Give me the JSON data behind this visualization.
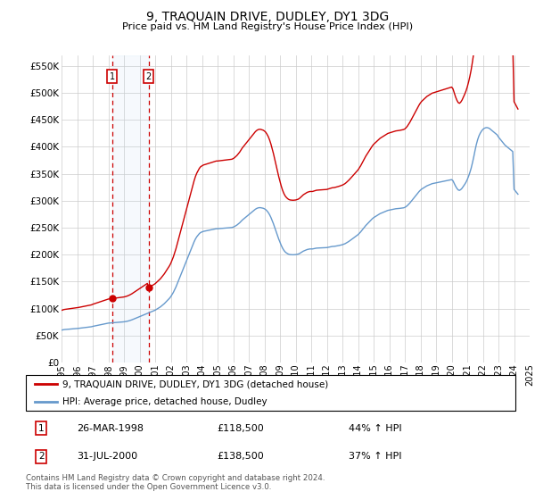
{
  "title": "9, TRAQUAIN DRIVE, DUDLEY, DY1 3DG",
  "subtitle": "Price paid vs. HM Land Registry's House Price Index (HPI)",
  "ylim": [
    0,
    570000
  ],
  "yticks": [
    0,
    50000,
    100000,
    150000,
    200000,
    250000,
    300000,
    350000,
    400000,
    450000,
    500000,
    550000
  ],
  "background_color": "#ffffff",
  "grid_color": "#cccccc",
  "hpi_color": "#6699cc",
  "price_color": "#cc0000",
  "sale1_date_num": 1998.23,
  "sale1_price": 118500,
  "sale1_label": "26-MAR-1998",
  "sale1_pct": "44% ↑ HPI",
  "sale2_date_num": 2000.58,
  "sale2_price": 138500,
  "sale2_label": "31-JUL-2000",
  "sale2_pct": "37% ↑ HPI",
  "legend_property": "9, TRAQUAIN DRIVE, DUDLEY, DY1 3DG (detached house)",
  "legend_hpi": "HPI: Average price, detached house, Dudley",
  "footnote": "Contains HM Land Registry data © Crown copyright and database right 2024.\nThis data is licensed under the Open Government Licence v3.0.",
  "hpi_dates": [
    1995.0,
    1995.083,
    1995.167,
    1995.25,
    1995.333,
    1995.417,
    1995.5,
    1995.583,
    1995.667,
    1995.75,
    1995.833,
    1995.917,
    1996.0,
    1996.083,
    1996.167,
    1996.25,
    1996.333,
    1996.417,
    1996.5,
    1996.583,
    1996.667,
    1996.75,
    1996.833,
    1996.917,
    1997.0,
    1997.083,
    1997.167,
    1997.25,
    1997.333,
    1997.417,
    1997.5,
    1997.583,
    1997.667,
    1997.75,
    1997.833,
    1997.917,
    1998.0,
    1998.083,
    1998.167,
    1998.25,
    1998.333,
    1998.417,
    1998.5,
    1998.583,
    1998.667,
    1998.75,
    1998.833,
    1998.917,
    1999.0,
    1999.083,
    1999.167,
    1999.25,
    1999.333,
    1999.417,
    1999.5,
    1999.583,
    1999.667,
    1999.75,
    1999.833,
    1999.917,
    2000.0,
    2000.083,
    2000.167,
    2000.25,
    2000.333,
    2000.417,
    2000.5,
    2000.583,
    2000.667,
    2000.75,
    2000.833,
    2000.917,
    2001.0,
    2001.083,
    2001.167,
    2001.25,
    2001.333,
    2001.417,
    2001.5,
    2001.583,
    2001.667,
    2001.75,
    2001.833,
    2001.917,
    2002.0,
    2002.083,
    2002.167,
    2002.25,
    2002.333,
    2002.417,
    2002.5,
    2002.583,
    2002.667,
    2002.75,
    2002.833,
    2002.917,
    2003.0,
    2003.083,
    2003.167,
    2003.25,
    2003.333,
    2003.417,
    2003.5,
    2003.583,
    2003.667,
    2003.75,
    2003.833,
    2003.917,
    2004.0,
    2004.083,
    2004.167,
    2004.25,
    2004.333,
    2004.417,
    2004.5,
    2004.583,
    2004.667,
    2004.75,
    2004.833,
    2004.917,
    2005.0,
    2005.083,
    2005.167,
    2005.25,
    2005.333,
    2005.417,
    2005.5,
    2005.583,
    2005.667,
    2005.75,
    2005.833,
    2005.917,
    2006.0,
    2006.083,
    2006.167,
    2006.25,
    2006.333,
    2006.417,
    2006.5,
    2006.583,
    2006.667,
    2006.75,
    2006.833,
    2006.917,
    2007.0,
    2007.083,
    2007.167,
    2007.25,
    2007.333,
    2007.417,
    2007.5,
    2007.583,
    2007.667,
    2007.75,
    2007.833,
    2007.917,
    2008.0,
    2008.083,
    2008.167,
    2008.25,
    2008.333,
    2008.417,
    2008.5,
    2008.583,
    2008.667,
    2008.75,
    2008.833,
    2008.917,
    2009.0,
    2009.083,
    2009.167,
    2009.25,
    2009.333,
    2009.417,
    2009.5,
    2009.583,
    2009.667,
    2009.75,
    2009.833,
    2009.917,
    2010.0,
    2010.083,
    2010.167,
    2010.25,
    2010.333,
    2010.417,
    2010.5,
    2010.583,
    2010.667,
    2010.75,
    2010.833,
    2010.917,
    2011.0,
    2011.083,
    2011.167,
    2011.25,
    2011.333,
    2011.417,
    2011.5,
    2011.583,
    2011.667,
    2011.75,
    2011.833,
    2011.917,
    2012.0,
    2012.083,
    2012.167,
    2012.25,
    2012.333,
    2012.417,
    2012.5,
    2012.583,
    2012.667,
    2012.75,
    2012.833,
    2012.917,
    2013.0,
    2013.083,
    2013.167,
    2013.25,
    2013.333,
    2013.417,
    2013.5,
    2013.583,
    2013.667,
    2013.75,
    2013.833,
    2013.917,
    2014.0,
    2014.083,
    2014.167,
    2014.25,
    2014.333,
    2014.417,
    2014.5,
    2014.583,
    2014.667,
    2014.75,
    2014.833,
    2014.917,
    2015.0,
    2015.083,
    2015.167,
    2015.25,
    2015.333,
    2015.417,
    2015.5,
    2015.583,
    2015.667,
    2015.75,
    2015.833,
    2015.917,
    2016.0,
    2016.083,
    2016.167,
    2016.25,
    2016.333,
    2016.417,
    2016.5,
    2016.583,
    2016.667,
    2016.75,
    2016.833,
    2016.917,
    2017.0,
    2017.083,
    2017.167,
    2017.25,
    2017.333,
    2017.417,
    2017.5,
    2017.583,
    2017.667,
    2017.75,
    2017.833,
    2017.917,
    2018.0,
    2018.083,
    2018.167,
    2018.25,
    2018.333,
    2018.417,
    2018.5,
    2018.583,
    2018.667,
    2018.75,
    2018.833,
    2018.917,
    2019.0,
    2019.083,
    2019.167,
    2019.25,
    2019.333,
    2019.417,
    2019.5,
    2019.583,
    2019.667,
    2019.75,
    2019.833,
    2019.917,
    2020.0,
    2020.083,
    2020.167,
    2020.25,
    2020.333,
    2020.417,
    2020.5,
    2020.583,
    2020.667,
    2020.75,
    2020.833,
    2020.917,
    2021.0,
    2021.083,
    2021.167,
    2021.25,
    2021.333,
    2021.417,
    2021.5,
    2021.583,
    2021.667,
    2021.75,
    2021.833,
    2021.917,
    2022.0,
    2022.083,
    2022.167,
    2022.25,
    2022.333,
    2022.417,
    2022.5,
    2022.583,
    2022.667,
    2022.75,
    2022.833,
    2022.917,
    2023.0,
    2023.083,
    2023.167,
    2023.25,
    2023.333,
    2023.417,
    2023.5,
    2023.583,
    2023.667,
    2023.75,
    2023.833,
    2023.917,
    2024.0,
    2024.083,
    2024.167,
    2024.25
  ],
  "hpi_values": [
    60000,
    60500,
    61000,
    61200,
    61400,
    61600,
    61800,
    62000,
    62200,
    62400,
    62600,
    62800,
    63000,
    63300,
    63600,
    63900,
    64200,
    64500,
    64800,
    65100,
    65400,
    65700,
    66000,
    66300,
    67000,
    67500,
    68000,
    68500,
    69000,
    69500,
    70000,
    70500,
    71000,
    71500,
    72000,
    72500,
    73000,
    73200,
    73400,
    73600,
    73800,
    74000,
    74200,
    74400,
    74600,
    74800,
    75000,
    75200,
    75400,
    75800,
    76200,
    76800,
    77400,
    78200,
    79000,
    80000,
    81000,
    82000,
    83000,
    84000,
    85000,
    86000,
    87000,
    88000,
    89000,
    90000,
    91000,
    92000,
    93000,
    94000,
    95000,
    96000,
    97000,
    98500,
    100000,
    101500,
    103000,
    105000,
    107000,
    109000,
    111500,
    114000,
    116500,
    119000,
    122000,
    126000,
    130000,
    135000,
    140000,
    146000,
    152000,
    158000,
    164000,
    170000,
    176000,
    182000,
    188000,
    194000,
    200000,
    206000,
    212000,
    218000,
    224000,
    229000,
    233000,
    236000,
    239000,
    241000,
    242000,
    243000,
    243500,
    244000,
    244500,
    245000,
    245500,
    246000,
    246500,
    247000,
    247500,
    248000,
    248000,
    248200,
    248400,
    248600,
    248800,
    249000,
    249200,
    249400,
    249600,
    249800,
    250000,
    250200,
    251000,
    252000,
    253500,
    255000,
    257000,
    259000,
    261500,
    264000,
    266000,
    268000,
    270000,
    272000,
    274000,
    276000,
    278000,
    280000,
    282000,
    284000,
    285500,
    286500,
    287000,
    287000,
    286500,
    286000,
    285000,
    283500,
    281000,
    278000,
    274000,
    269000,
    263000,
    257000,
    250000,
    243000,
    236000,
    229000,
    223000,
    217000,
    212000,
    208000,
    205000,
    203000,
    201500,
    200500,
    200000,
    199800,
    199700,
    199800,
    200000,
    200500,
    201000,
    202000,
    203500,
    205000,
    206500,
    207500,
    208500,
    209500,
    210000,
    210500,
    210500,
    210500,
    211000,
    211500,
    212000,
    212200,
    212300,
    212400,
    212500,
    212600,
    212700,
    212800,
    213000,
    213500,
    214000,
    214500,
    215000,
    215200,
    215400,
    215800,
    216200,
    216700,
    217200,
    217800,
    218400,
    219200,
    220200,
    221500,
    223000,
    224500,
    226200,
    228000,
    229800,
    231600,
    233400,
    235200,
    237000,
    239500,
    242000,
    245000,
    248000,
    251000,
    254000,
    256500,
    259000,
    261500,
    264000,
    266500,
    268500,
    270000,
    271500,
    273000,
    274500,
    276000,
    277000,
    278000,
    279000,
    280000,
    281000,
    282000,
    282500,
    283000,
    283500,
    284000,
    284500,
    285000,
    285200,
    285400,
    285700,
    286000,
    286300,
    286700,
    287500,
    289000,
    291000,
    293500,
    296000,
    299000,
    302000,
    305000,
    308000,
    311000,
    314000,
    317000,
    319500,
    321500,
    323000,
    324500,
    326000,
    327500,
    328500,
    329500,
    330500,
    331500,
    332000,
    332500,
    333000,
    333500,
    334000,
    334500,
    335000,
    335500,
    336000,
    336500,
    337000,
    337500,
    338000,
    338500,
    339000,
    337000,
    332000,
    327000,
    323000,
    320000,
    319000,
    320500,
    323000,
    326500,
    330000,
    334000,
    339000,
    345000,
    352000,
    360000,
    370000,
    381000,
    393000,
    404000,
    413000,
    420000,
    425000,
    429000,
    432000,
    434000,
    435000,
    435500,
    435000,
    434000,
    432000,
    430000,
    428000,
    426000,
    424000,
    422000,
    418000,
    415000,
    412000,
    409000,
    406000,
    403000,
    401000,
    399000,
    397000,
    395000,
    393000,
    391000,
    321000,
    318000,
    315000,
    312000
  ],
  "xlim_start": 1995.0,
  "xlim_end": 2024.42
}
